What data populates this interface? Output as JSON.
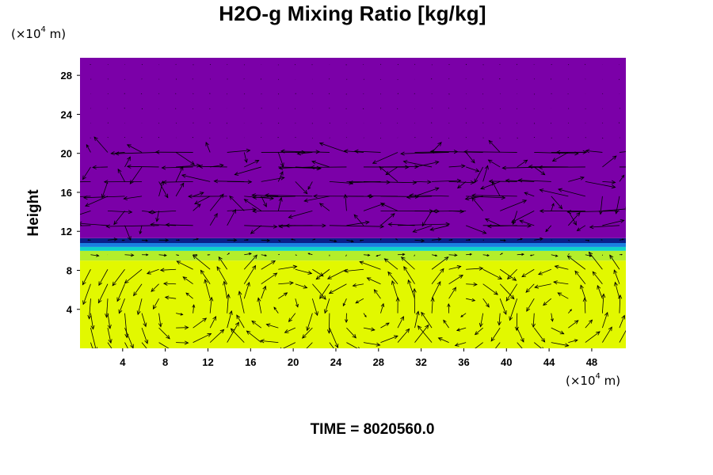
{
  "title": "H2O-g Mixing Ratio [kg/kg]",
  "y_unit": {
    "prefix": "(×10",
    "exp": "4",
    "suffix": " m)"
  },
  "x_unit": {
    "prefix": "(×10",
    "exp": "4",
    "suffix": " m)"
  },
  "ylabel": "Height",
  "time_label": "TIME = 8020560.0",
  "colors": {
    "upper_dry": "#7b00a8",
    "transition_dark": "#0a1f8a",
    "transition_blue": "#1a7fe0",
    "transition_cyan": "#10d2c8",
    "moist_green": "#a6ec2a",
    "moist_yellow": "#e2f800",
    "arrow": "#000000"
  },
  "chart_data": {
    "type": "heatmap",
    "title": "H2O-g Mixing Ratio [kg/kg]",
    "xlabel": "",
    "ylabel": "Height",
    "x_unit": "×10^4 m",
    "y_unit": "×10^4 m",
    "xlim": [
      0,
      51.2
    ],
    "ylim": [
      0,
      29.8
    ],
    "xticks": [
      4,
      8,
      12,
      16,
      20,
      24,
      28,
      32,
      36,
      40,
      44,
      48
    ],
    "yticks": [
      4,
      8,
      12,
      16,
      20,
      24,
      28
    ],
    "fields": [
      {
        "y_from": 0,
        "y_to": 9.0,
        "color": "#e2f800"
      },
      {
        "y_from": 9.0,
        "y_to": 10.0,
        "color": "#b4ee2a"
      },
      {
        "y_from": 10.0,
        "y_to": 10.4,
        "color": "#10d2c8"
      },
      {
        "y_from": 10.4,
        "y_to": 10.8,
        "color": "#1a7fe0"
      },
      {
        "y_from": 10.8,
        "y_to": 11.3,
        "color": "#0a1f8a"
      },
      {
        "y_from": 11.3,
        "y_to": 29.8,
        "color": "#7b00a8"
      }
    ],
    "vortices": [
      {
        "x": 9,
        "y": 4.0,
        "rotation": "ccw"
      },
      {
        "x": 19,
        "y": 4.3,
        "rotation": "cw"
      },
      {
        "x": 27,
        "y": 3.8,
        "rotation": "ccw"
      },
      {
        "x": 36,
        "y": 3.8,
        "rotation": "cw"
      },
      {
        "x": 45,
        "y": 3.8,
        "rotation": "ccw"
      }
    ],
    "time": 8020560.0,
    "grid": false,
    "legend": "none"
  }
}
